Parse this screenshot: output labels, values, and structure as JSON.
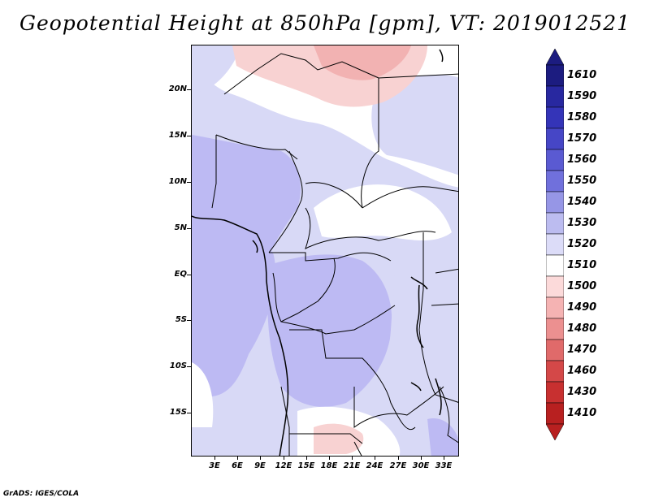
{
  "title": "Geopotential Height at 850hPa [gpm], VT: 2019012521",
  "footer": "GrADS: IGES/COLA",
  "lat_labels": [
    "20N",
    "15N",
    "10N",
    "5N",
    "EQ",
    "5S",
    "10S",
    "15S"
  ],
  "lon_labels": [
    "3E",
    "6E",
    "9E",
    "12E",
    "15E",
    "18E",
    "21E",
    "24E",
    "27E",
    "30E",
    "33E"
  ],
  "colorbar": {
    "levels": [
      "1610",
      "1590",
      "1580",
      "1570",
      "1560",
      "1550",
      "1540",
      "1530",
      "1520",
      "1510",
      "1500",
      "1490",
      "1480",
      "1470",
      "1460",
      "1430",
      "1410"
    ],
    "colors": [
      "#1c1c80",
      "#2828a0",
      "#3434b8",
      "#4646c6",
      "#5a5ad2",
      "#7070dc",
      "#9696e6",
      "#bcbcf0",
      "#dcdcf8",
      "#ffffff",
      "#fcdada",
      "#f5b3b3",
      "#ec9090",
      "#e06a6a",
      "#d44848",
      "#c83030",
      "#b82020"
    ]
  },
  "map_colors": {
    "background": "#d8d9f6",
    "light_blue": "#cfd0f8",
    "mid_blue": "#b8b6f2",
    "white": "#ffffff",
    "pink": "#f8d2d2",
    "dark_pink": "#f2b2b2"
  }
}
